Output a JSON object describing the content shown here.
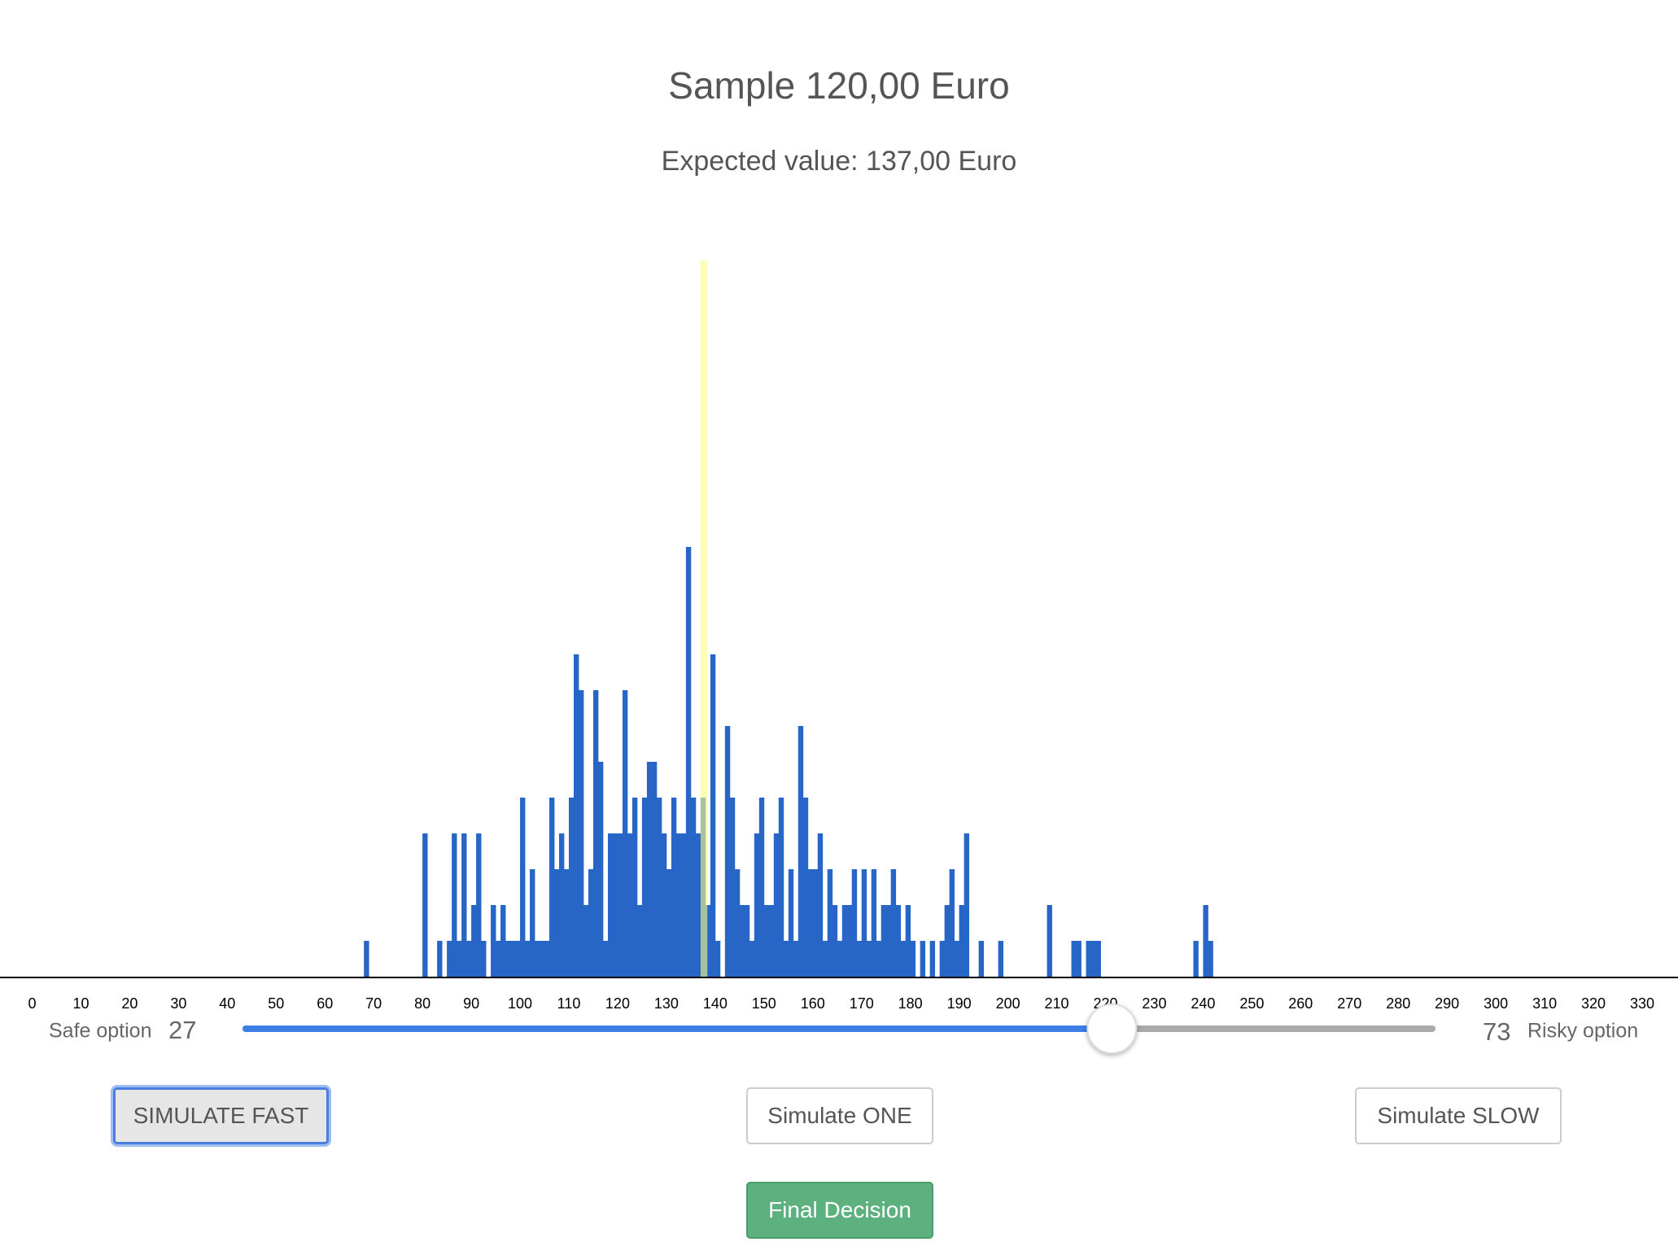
{
  "header": {
    "title": "Sample 120,00 Euro",
    "subtitle": "Expected value: 137,00 Euro"
  },
  "chart_data": {
    "type": "histogram",
    "color": "#2766c6",
    "marker": 137,
    "marker_color": "#ffff80",
    "xlim": [
      0,
      330
    ],
    "ylim": [
      0,
      20
    ],
    "xticks": [
      0,
      10,
      20,
      30,
      40,
      50,
      60,
      70,
      80,
      90,
      100,
      110,
      120,
      130,
      140,
      150,
      160,
      170,
      180,
      190,
      200,
      210,
      220,
      230,
      240,
      250,
      260,
      270,
      280,
      290,
      300,
      310,
      320,
      330
    ],
    "bins": [
      68,
      69,
      70,
      71,
      72,
      73,
      74,
      75,
      76,
      77,
      78,
      79,
      80,
      81,
      82,
      83,
      84,
      85,
      86,
      87,
      88,
      89,
      90,
      91,
      92,
      93,
      94,
      95,
      96,
      97,
      98,
      99,
      100,
      101,
      102,
      103,
      104,
      105,
      106,
      107,
      108,
      109,
      110,
      111,
      112,
      113,
      114,
      115,
      116,
      117,
      118,
      119,
      120,
      121,
      122,
      123,
      124,
      125,
      126,
      127,
      128,
      129,
      130,
      131,
      132,
      133,
      134,
      135,
      136,
      137,
      138,
      139,
      140,
      141,
      142,
      143,
      144,
      145,
      146,
      147,
      148,
      149,
      150,
      151,
      152,
      153,
      154,
      155,
      156,
      157,
      158,
      159,
      160,
      161,
      162,
      163,
      164,
      165,
      166,
      167,
      168,
      169,
      170,
      171,
      172,
      173,
      174,
      175,
      176,
      177,
      178,
      179,
      180,
      181,
      182,
      183,
      184,
      185,
      186,
      187,
      188,
      189,
      190,
      191,
      192,
      193,
      194,
      195,
      196,
      197,
      198,
      199,
      200,
      201,
      202,
      203,
      204,
      205,
      206,
      207,
      208,
      209,
      210,
      211,
      212,
      213,
      214,
      215,
      216,
      217,
      218,
      219,
      220,
      221,
      222,
      223,
      224,
      225,
      226,
      227,
      228,
      229,
      230,
      231,
      232,
      233,
      234,
      235,
      236,
      237,
      238,
      239,
      240,
      241,
      242
    ],
    "counts": [
      1,
      0,
      0,
      0,
      0,
      0,
      0,
      0,
      0,
      0,
      0,
      0,
      4,
      0,
      0,
      1,
      0,
      1,
      4,
      1,
      4,
      1,
      2,
      4,
      1,
      0,
      2,
      1,
      2,
      1,
      1,
      1,
      5,
      1,
      3,
      1,
      1,
      1,
      5,
      3,
      4,
      3,
      5,
      9,
      8,
      2,
      3,
      8,
      6,
      1,
      4,
      4,
      4,
      8,
      4,
      5,
      2,
      5,
      6,
      6,
      5,
      4,
      3,
      5,
      4,
      4,
      12,
      5,
      4,
      5,
      2,
      9,
      1,
      0,
      7,
      5,
      3,
      2,
      2,
      1,
      4,
      5,
      2,
      2,
      4,
      5,
      1,
      3,
      1,
      7,
      5,
      3,
      3,
      4,
      1,
      3,
      2,
      1,
      2,
      2,
      3,
      1,
      3,
      1,
      3,
      1,
      2,
      2,
      3,
      2,
      1,
      2,
      1,
      0,
      1,
      0,
      1,
      0,
      1,
      2,
      3,
      1,
      2,
      4,
      0,
      0,
      1,
      0,
      0,
      0,
      1,
      0,
      0,
      0,
      0,
      0,
      0,
      0,
      0,
      0,
      2,
      0,
      0,
      0,
      0,
      1,
      1,
      0,
      1,
      1,
      1,
      0,
      0,
      0,
      0,
      0,
      0,
      0,
      0,
      0,
      0,
      0,
      0,
      0,
      0,
      0,
      0,
      0,
      0,
      0,
      1,
      0,
      2,
      1
    ]
  },
  "slider": {
    "left_label": "Safe option",
    "left_value": 27,
    "right_value": 73,
    "right_label": "Risky option"
  },
  "buttons": {
    "fast": "SIMULATE FAST",
    "one": "Simulate ONE",
    "slow": "Simulate SLOW",
    "final": "Final Decision"
  }
}
